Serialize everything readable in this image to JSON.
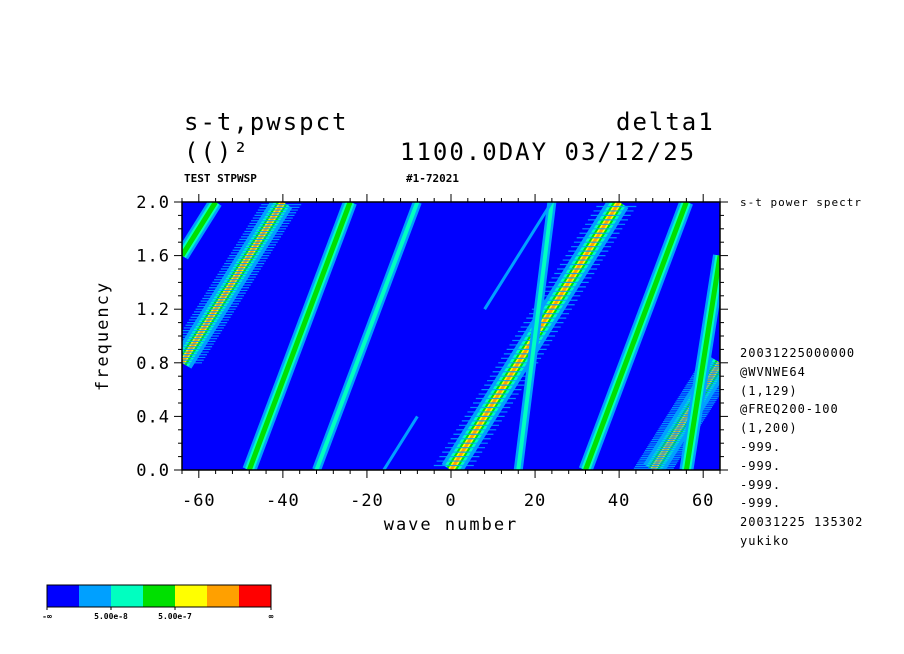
{
  "header": {
    "title_left": "s-t,pwspct",
    "title_right": "delta1",
    "subtitle_left": "(()²",
    "subtitle_right": "1100.0DAY 03/12/25",
    "label_test": "TEST STPWSP",
    "label_id": "#1-72021"
  },
  "side_info": {
    "title": "s-t power spectr",
    "lines": [
      "20031225000000",
      "@WVNWE64",
      "(1,129)",
      "@FREQ200-100",
      "(1,200)",
      "-999.",
      "-999.",
      "-999.",
      "-999.",
      "20031225 135302",
      "yukiko"
    ]
  },
  "colorbar": {
    "colors": [
      "#0000ff",
      "#00a0ff",
      "#00ffc0",
      "#00e000",
      "#ffff00",
      "#ffa000",
      "#ff0000"
    ],
    "labels": [
      "-∞",
      "5.00e-8",
      "5.00e-7",
      "∞"
    ]
  },
  "chart_data": {
    "type": "heatmap",
    "title": "s-t,pwspct",
    "xlabel": "wave number",
    "ylabel": "frequency",
    "xlim": [
      -64,
      64
    ],
    "ylim": [
      0.0,
      2.0
    ],
    "x_ticks": [
      -60,
      -40,
      -20,
      0,
      20,
      40,
      60
    ],
    "x_tick_labels": [
      "-60",
      "-40",
      "-20",
      "0",
      "20",
      "40",
      "60"
    ],
    "y_ticks": [
      0.0,
      0.4,
      0.8,
      1.2,
      1.6,
      2.0
    ],
    "y_tick_labels": [
      "0.0",
      "0.4",
      "0.8",
      "1.2",
      "1.6",
      "2.0"
    ],
    "background_color": "#0000ff",
    "ridges": [
      {
        "x0": -64,
        "y0": 0.8,
        "x1": -40,
        "y1": 2.0,
        "intensity": "high"
      },
      {
        "x0": 0,
        "y0": 0.0,
        "x1": 40,
        "y1": 2.0,
        "intensity": "high"
      },
      {
        "x0": 48,
        "y0": 0.0,
        "x1": 64,
        "y1": 0.8,
        "intensity": "high"
      },
      {
        "x0": -64,
        "y0": 1.6,
        "x1": -56,
        "y1": 2.0,
        "intensity": "medium"
      },
      {
        "x0": -48,
        "y0": 0.0,
        "x1": -24,
        "y1": 2.0,
        "intensity": "medium"
      },
      {
        "x0": 32,
        "y0": 0.0,
        "x1": 56,
        "y1": 2.0,
        "intensity": "medium"
      },
      {
        "x0": 56,
        "y0": 0.0,
        "x1": 64,
        "y1": 1.6,
        "intensity": "medium"
      },
      {
        "x0": -32,
        "y0": 0.0,
        "x1": -8,
        "y1": 2.0,
        "intensity": "low"
      },
      {
        "x0": 16,
        "y0": 0.0,
        "x1": 24,
        "y1": 2.0,
        "intensity": "low"
      },
      {
        "x0": -16,
        "y0": 0.0,
        "x1": -8,
        "y1": 0.4,
        "intensity": "faint"
      },
      {
        "x0": 8,
        "y0": 1.2,
        "x1": 24,
        "y1": 2.0,
        "intensity": "faint"
      }
    ]
  }
}
